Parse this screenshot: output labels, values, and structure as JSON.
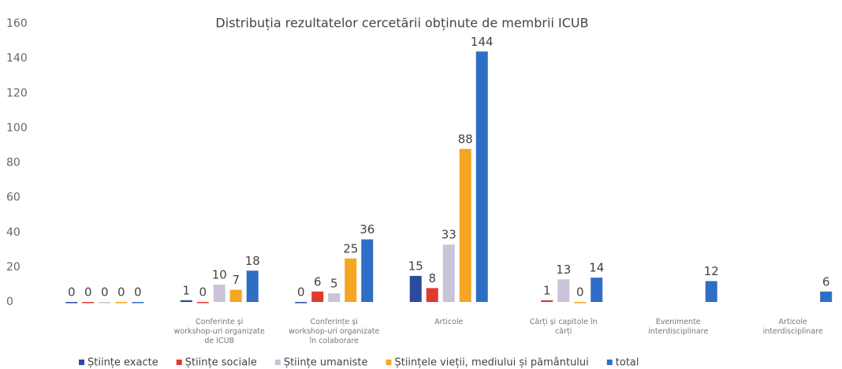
{
  "chart_data": {
    "type": "bar",
    "title": "Distribuția rezultatelor cercetării obținute de membrii ICUB",
    "categories": [
      null,
      "Conferinte și workshop-uri organizate de ICUB",
      "Conferințe și workshop-uri organizate în colaborare",
      "Articole",
      "Cărți și capitole în cărți",
      "Evenimente interdisciplinare",
      "Articole interdisciplinare"
    ],
    "series": [
      {
        "name": "Științe exacte",
        "color": "#2e4a9e",
        "values": [
          0,
          1,
          0,
          15,
          null,
          null,
          null
        ]
      },
      {
        "name": "Științe sociale",
        "color": "#e0392d",
        "values": [
          0,
          0,
          6,
          8,
          1,
          null,
          null
        ]
      },
      {
        "name": "Științe umaniste",
        "color": "#c9c4d8",
        "values": [
          0,
          10,
          5,
          33,
          13,
          null,
          null
        ]
      },
      {
        "name": "Științele vieții, mediului și pământului",
        "color": "#f6a623",
        "values": [
          0,
          7,
          25,
          88,
          0,
          null,
          null
        ]
      },
      {
        "name": "total",
        "color": "#2f6ec6",
        "values": [
          0,
          18,
          36,
          144,
          14,
          12,
          6
        ]
      }
    ],
    "ylim": [
      0,
      160
    ],
    "yticks": [
      0,
      20,
      40,
      60,
      80,
      100,
      120,
      140,
      160
    ],
    "grid": false,
    "legend": "bottom"
  }
}
